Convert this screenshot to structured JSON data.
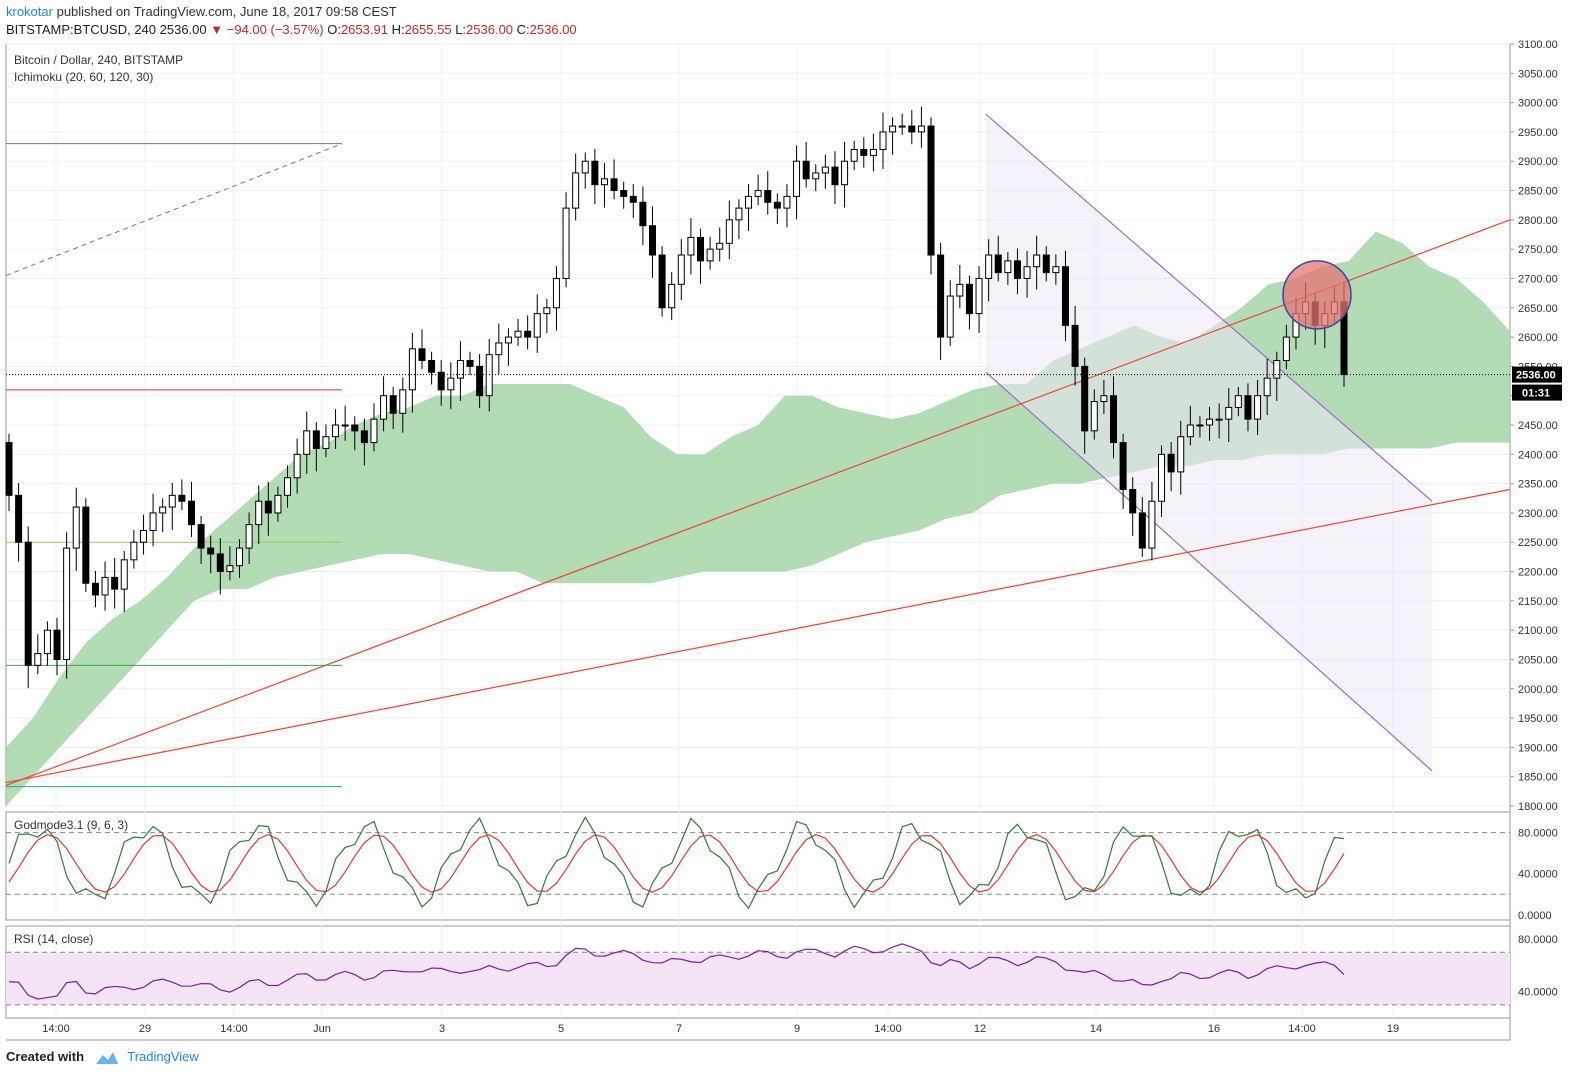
{
  "header": {
    "author": "krokotar",
    "published": "published on TradingView.com, June 18, 2017 09:58 CEST",
    "symbol": "BITSTAMP:BTCUSD, 240",
    "last": "2536.00",
    "change": "▼ −94.00 (−3.57%)",
    "o_label": "O:",
    "o_val": "2653.91",
    "h_label": "H:",
    "h_val": "2655.55",
    "l_label": "L:",
    "l_val": "2536.00",
    "c_label": "C:",
    "c_val": "2536.00"
  },
  "footer": {
    "created": "Created with",
    "brand": "TradingView"
  },
  "colors": {
    "bull": "#ffffff",
    "bear": "#000000",
    "cloud": "#a5d6a7",
    "trend": "#f44336",
    "channel": "#9c6ad6",
    "osc_green": "#2e7d32",
    "osc_red": "#e53935",
    "rsi": "#7b1fa2",
    "rsi_band": "#f3e5f5"
  },
  "chart_data": {
    "type": "candlestick",
    "title": "Bitcoin / Dollar, 240, BITSTAMP",
    "indicator": "Ichimoku (20, 60, 120, 30)",
    "ylim": [
      1800,
      3100
    ],
    "y_ticks": [
      "3100.00",
      "3050.00",
      "3000.00",
      "2950.00",
      "2900.00",
      "2850.00",
      "2800.00",
      "2750.00",
      "2700.00",
      "2650.00",
      "2600.00",
      "2550.00",
      "2500.00",
      "2450.00",
      "2400.00",
      "2350.00",
      "2300.00",
      "2250.00",
      "2200.00",
      "2150.00",
      "2100.00",
      "2050.00",
      "2000.00",
      "1950.00",
      "1900.00",
      "1850.00",
      "1800.00"
    ],
    "x_ticks": [
      "14:00",
      "29",
      "14:00",
      "Jun",
      "3",
      "5",
      "7",
      "9",
      "14:00",
      "12",
      "14",
      "16",
      "14:00",
      "19"
    ],
    "last_price_label": "2536.00",
    "countdown": "01:31",
    "closes": [
      2330,
      2250,
      2040,
      2060,
      2100,
      2050,
      2240,
      2310,
      2180,
      2160,
      2190,
      2170,
      2220,
      2250,
      2270,
      2300,
      2310,
      2330,
      2320,
      2280,
      2240,
      2230,
      2200,
      2210,
      2240,
      2280,
      2320,
      2300,
      2330,
      2360,
      2400,
      2440,
      2410,
      2430,
      2450,
      2450,
      2440,
      2420,
      2460,
      2500,
      2470,
      2510,
      2580,
      2560,
      2540,
      2510,
      2530,
      2560,
      2550,
      2500,
      2570,
      2590,
      2600,
      2610,
      2600,
      2640,
      2650,
      2700,
      2820,
      2880,
      2900,
      2860,
      2870,
      2850,
      2840,
      2830,
      2790,
      2740,
      2650,
      2690,
      2740,
      2770,
      2730,
      2750,
      2760,
      2800,
      2820,
      2840,
      2850,
      2830,
      2820,
      2840,
      2900,
      2870,
      2880,
      2890,
      2860,
      2900,
      2920,
      2910,
      2920,
      2950,
      2960,
      2960,
      2950,
      2960,
      2740,
      2600,
      2670,
      2690,
      2640,
      2700,
      2740,
      2710,
      2730,
      2700,
      2720,
      2740,
      2710,
      2720,
      2620,
      2550,
      2440,
      2490,
      2500,
      2420,
      2340,
      2300,
      2240,
      2320,
      2400,
      2370,
      2430,
      2450,
      2450,
      2460,
      2460,
      2480,
      2500,
      2460,
      2500,
      2530,
      2560,
      2600,
      2640,
      2660,
      2620,
      2640,
      2660,
      2536
    ],
    "ichimoku": {
      "senkou_a": [
        1900,
        1950,
        2020,
        2080,
        2120,
        2150,
        2190,
        2240,
        2280,
        2320,
        2360,
        2400,
        2420,
        2450,
        2470,
        2480,
        2500,
        2500,
        2520,
        2520,
        2520,
        2520,
        2500,
        2480,
        2430,
        2400,
        2400,
        2430,
        2450,
        2500,
        2500,
        2480,
        2470,
        2460,
        2470,
        2490,
        2510,
        2520,
        2520,
        2560,
        2580,
        2600,
        2620,
        2600,
        2590,
        2620,
        2650,
        2690,
        2700,
        2720,
        2730,
        2780,
        2760,
        2720,
        2700,
        2660,
        2610
      ],
      "senkou_b": [
        1800,
        1850,
        1900,
        1950,
        2000,
        2050,
        2100,
        2150,
        2170,
        2170,
        2190,
        2200,
        2210,
        2220,
        2230,
        2230,
        2220,
        2210,
        2200,
        2200,
        2180,
        2180,
        2180,
        2180,
        2180,
        2190,
        2200,
        2200,
        2200,
        2200,
        2210,
        2230,
        2250,
        2260,
        2270,
        2290,
        2300,
        2330,
        2340,
        2350,
        2350,
        2360,
        2370,
        2380,
        2380,
        2390,
        2390,
        2400,
        2400,
        2400,
        2410,
        2410,
        2410,
        2410,
        2420,
        2420,
        2420
      ]
    },
    "osc_panel": {
      "title": "Godmode3.1 (9, 6, 3)",
      "y_ticks": [
        "80.0000",
        "40.0000",
        "0.0000"
      ],
      "levels": [
        80,
        20
      ],
      "ylim": [
        -5,
        100
      ]
    },
    "rsi_panel": {
      "title": "RSI (14, close)",
      "y_ticks": [
        "80.0000",
        "40.0000"
      ],
      "band": [
        30,
        70
      ],
      "ylim": [
        20,
        90
      ]
    }
  }
}
